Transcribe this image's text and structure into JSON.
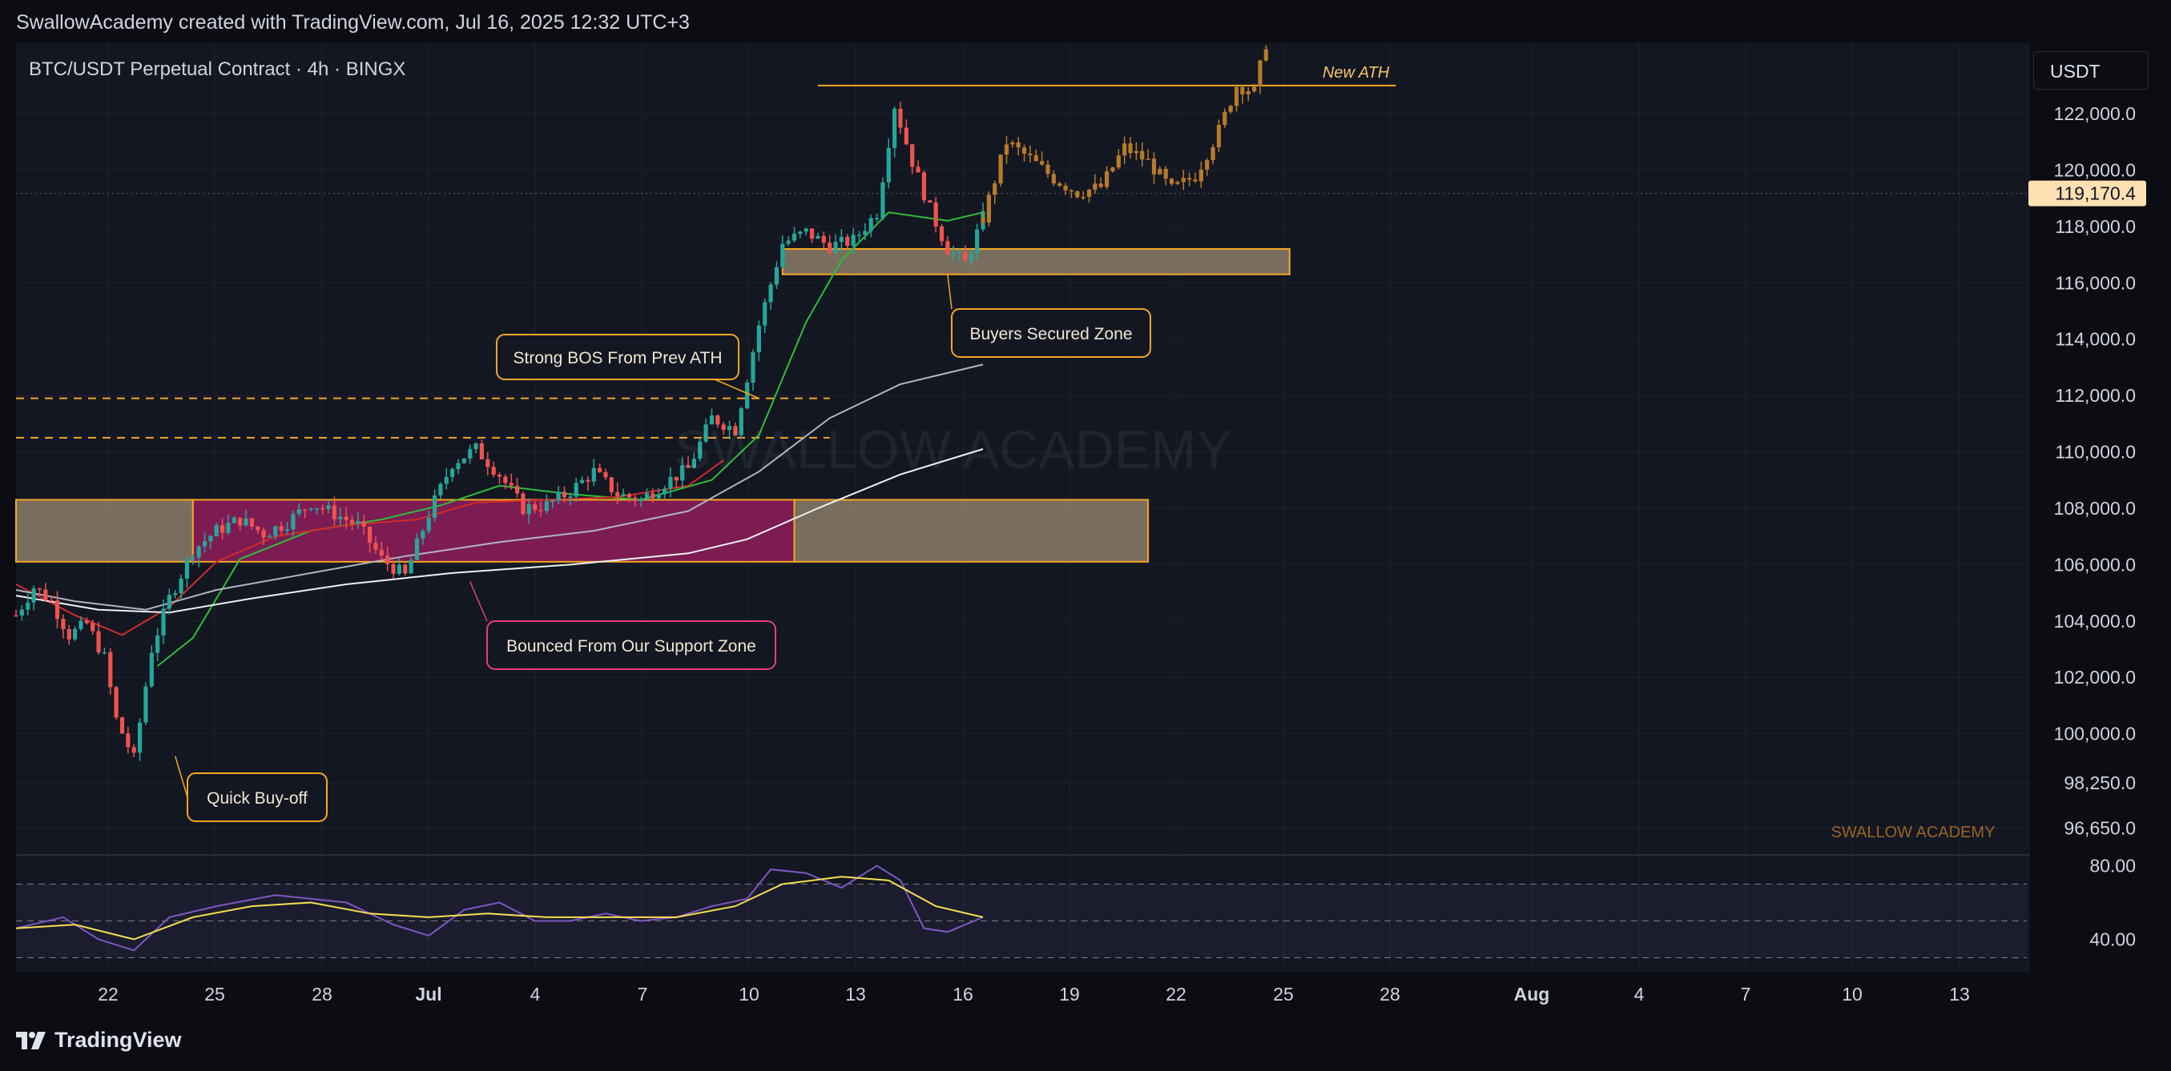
{
  "header": {
    "attribution": "SwallowAcademy created with TradingView.com, Jul 16, 2025 12:32 UTC+3"
  },
  "footer": {
    "brand": "TradingView",
    "logo_icon": "tradingview-logo-icon"
  },
  "currency_button": "USDT",
  "colors": {
    "background": "#131722",
    "up": "#26a69a",
    "down": "#ef5350",
    "projection": "#b87a2a",
    "orange": "#f5a623",
    "support_zone": "#8f1d5c",
    "rsi": "#7e57c2"
  },
  "chart_data": {
    "type": "candlestick",
    "title": "BTC/USDT Perpetual Contract · 4h · BINGX",
    "watermark": "SWALLOW ACADEMY",
    "watermark_corner": "SWALLOW ACADEMY",
    "ylim": [
      95700,
      124500
    ],
    "y_ticks": [
      "122,000.0",
      "120,000.0",
      "118,000.0",
      "116,000.0",
      "114,000.0",
      "112,000.0",
      "110,000.0",
      "108,000.0",
      "106,000.0",
      "104,000.0",
      "102,000.0",
      "100,000.0",
      "98,250.0",
      "96,650.0"
    ],
    "last_price_label": "119,170.4",
    "last_price": 119170.4,
    "x_ticks": [
      "22",
      "25",
      "28",
      "Jul",
      "4",
      "7",
      "10",
      "13",
      "16",
      "19",
      "22",
      "25",
      "28",
      "Aug",
      "4",
      "7",
      "10",
      "13"
    ],
    "price_path": [
      {
        "x": 0,
        "y": 104200
      },
      {
        "x": 3,
        "y": 105200
      },
      {
        "x": 6,
        "y": 104700
      },
      {
        "x": 9,
        "y": 103500
      },
      {
        "x": 12,
        "y": 103900
      },
      {
        "x": 15,
        "y": 102700
      },
      {
        "x": 17,
        "y": 100500
      },
      {
        "x": 20,
        "y": 99100
      },
      {
        "x": 23,
        "y": 103000
      },
      {
        "x": 26,
        "y": 104800
      },
      {
        "x": 30,
        "y": 106500
      },
      {
        "x": 34,
        "y": 107200
      },
      {
        "x": 38,
        "y": 107600
      },
      {
        "x": 42,
        "y": 107100
      },
      {
        "x": 46,
        "y": 107500
      },
      {
        "x": 50,
        "y": 108200
      },
      {
        "x": 54,
        "y": 107800
      },
      {
        "x": 58,
        "y": 107400
      },
      {
        "x": 62,
        "y": 106200
      },
      {
        "x": 66,
        "y": 105600
      },
      {
        "x": 70,
        "y": 107800
      },
      {
        "x": 74,
        "y": 109600
      },
      {
        "x": 78,
        "y": 110100
      },
      {
        "x": 82,
        "y": 109200
      },
      {
        "x": 86,
        "y": 108000
      },
      {
        "x": 90,
        "y": 108100
      },
      {
        "x": 94,
        "y": 108600
      },
      {
        "x": 98,
        "y": 109300
      },
      {
        "x": 102,
        "y": 108500
      },
      {
        "x": 106,
        "y": 108300
      },
      {
        "x": 110,
        "y": 108900
      },
      {
        "x": 114,
        "y": 109400
      },
      {
        "x": 118,
        "y": 111200
      },
      {
        "x": 122,
        "y": 110800
      },
      {
        "x": 126,
        "y": 114500
      },
      {
        "x": 130,
        "y": 117400
      },
      {
        "x": 134,
        "y": 117800
      },
      {
        "x": 138,
        "y": 117300
      },
      {
        "x": 142,
        "y": 117500
      },
      {
        "x": 146,
        "y": 118500
      },
      {
        "x": 149,
        "y": 122300
      },
      {
        "x": 152,
        "y": 120300
      },
      {
        "x": 155,
        "y": 118600
      },
      {
        "x": 158,
        "y": 117200
      },
      {
        "x": 161,
        "y": 116700
      },
      {
        "x": 164,
        "y": 118300
      }
    ],
    "projection_path": [
      {
        "x": 164,
        "y": 118300
      },
      {
        "x": 168,
        "y": 121000
      },
      {
        "x": 172,
        "y": 120400
      },
      {
        "x": 176,
        "y": 119700
      },
      {
        "x": 180,
        "y": 119200
      },
      {
        "x": 184,
        "y": 119400
      },
      {
        "x": 188,
        "y": 120800
      },
      {
        "x": 192,
        "y": 120300
      },
      {
        "x": 196,
        "y": 119300
      },
      {
        "x": 200,
        "y": 119800
      },
      {
        "x": 204,
        "y": 121400
      },
      {
        "x": 207,
        "y": 123000
      },
      {
        "x": 210,
        "y": 122800
      },
      {
        "x": 212,
        "y": 124500
      }
    ],
    "series": [
      {
        "name": "green EMA",
        "color": "#2dbd3a",
        "points": [
          [
            24,
            102400
          ],
          [
            30,
            103400
          ],
          [
            38,
            106200
          ],
          [
            50,
            107200
          ],
          [
            62,
            107600
          ],
          [
            72,
            108100
          ],
          [
            82,
            108800
          ],
          [
            94,
            108500
          ],
          [
            106,
            108300
          ],
          [
            118,
            109000
          ],
          [
            126,
            110600
          ],
          [
            134,
            114600
          ],
          [
            140,
            116800
          ],
          [
            148,
            118500
          ],
          [
            158,
            118200
          ],
          [
            164,
            118500
          ]
        ]
      },
      {
        "name": "red EMA",
        "color": "#d22b2b",
        "points": [
          [
            0,
            105300
          ],
          [
            10,
            104200
          ],
          [
            18,
            103500
          ],
          [
            26,
            104500
          ],
          [
            34,
            106100
          ],
          [
            44,
            107000
          ],
          [
            56,
            107400
          ],
          [
            68,
            107600
          ],
          [
            78,
            108200
          ],
          [
            90,
            108300
          ],
          [
            102,
            108400
          ],
          [
            114,
            108800
          ],
          [
            120,
            109700
          ]
        ]
      },
      {
        "name": "grey SMA",
        "color": "#b2b5be",
        "points": [
          [
            0,
            105100
          ],
          [
            10,
            104700
          ],
          [
            22,
            104400
          ],
          [
            34,
            105100
          ],
          [
            50,
            105700
          ],
          [
            66,
            106300
          ],
          [
            82,
            106800
          ],
          [
            98,
            107200
          ],
          [
            114,
            107900
          ],
          [
            126,
            109300
          ],
          [
            138,
            111200
          ],
          [
            150,
            112400
          ],
          [
            164,
            113100
          ]
        ]
      },
      {
        "name": "white SMA",
        "color": "#f0f0f0",
        "points": [
          [
            0,
            104900
          ],
          [
            14,
            104400
          ],
          [
            26,
            104300
          ],
          [
            40,
            104800
          ],
          [
            56,
            105300
          ],
          [
            74,
            105700
          ],
          [
            94,
            106000
          ],
          [
            114,
            106400
          ],
          [
            124,
            106900
          ],
          [
            136,
            108000
          ],
          [
            150,
            109200
          ],
          [
            164,
            110100
          ]
        ]
      }
    ],
    "levels": [
      {
        "name": "new_ath_line",
        "y": 123000,
        "x0": 136,
        "x1": 234,
        "style": "solid",
        "label": "New ATH"
      },
      {
        "name": "prev_ath_high",
        "y": 111900,
        "x0": 0,
        "x1": 138,
        "style": "dashed"
      },
      {
        "name": "prev_ath_low",
        "y": 110500,
        "x0": 0,
        "x1": 138,
        "style": "dashed"
      }
    ],
    "zones": [
      {
        "name": "support_zone_left",
        "x0": 0,
        "x1": 30,
        "y0": 106100,
        "y1": 108300,
        "style": "tan"
      },
      {
        "name": "support_zone_magenta",
        "x0": 30,
        "x1": 132,
        "y0": 106100,
        "y1": 108300,
        "style": "magenta"
      },
      {
        "name": "support_zone_right",
        "x0": 132,
        "x1": 192,
        "y0": 106100,
        "y1": 108300,
        "style": "tan"
      },
      {
        "name": "buyers_zone",
        "x0": 130,
        "x1": 216,
        "y0": 116300,
        "y1": 117200,
        "style": "tan"
      }
    ],
    "annotations": [
      {
        "name": "strong-bos",
        "text": "Strong BOS From Prev ATH",
        "target": {
          "x": 126,
          "y": 111900
        }
      },
      {
        "name": "buyers-zone",
        "text": "Buyers Secured Zone",
        "target": {
          "x": 158,
          "y": 116300
        }
      },
      {
        "name": "bounced",
        "text": "Bounced From Our Support Zone",
        "target": {
          "x": 77,
          "y": 105400
        }
      },
      {
        "name": "quick-buyoff",
        "text": "Quick Buy-off",
        "target": {
          "x": 27,
          "y": 99200
        }
      }
    ],
    "rsi": {
      "y_ticks": [
        "80.00",
        "40.00"
      ],
      "ylim": [
        25,
        85
      ],
      "upper_band": 70,
      "lower_band": 30,
      "rsi_points": [
        [
          0,
          46
        ],
        [
          8,
          52
        ],
        [
          14,
          40
        ],
        [
          20,
          34
        ],
        [
          26,
          52
        ],
        [
          34,
          58
        ],
        [
          44,
          64
        ],
        [
          56,
          60
        ],
        [
          64,
          48
        ],
        [
          70,
          42
        ],
        [
          76,
          56
        ],
        [
          82,
          60
        ],
        [
          88,
          50
        ],
        [
          94,
          50
        ],
        [
          100,
          54
        ],
        [
          106,
          50
        ],
        [
          112,
          52
        ],
        [
          118,
          58
        ],
        [
          124,
          62
        ],
        [
          128,
          78
        ],
        [
          134,
          76
        ],
        [
          140,
          68
        ],
        [
          146,
          80
        ],
        [
          150,
          72
        ],
        [
          154,
          46
        ],
        [
          158,
          44
        ],
        [
          164,
          52
        ]
      ],
      "ma_points": [
        [
          0,
          46
        ],
        [
          10,
          48
        ],
        [
          20,
          40
        ],
        [
          30,
          52
        ],
        [
          40,
          58
        ],
        [
          50,
          60
        ],
        [
          60,
          54
        ],
        [
          70,
          52
        ],
        [
          80,
          54
        ],
        [
          90,
          52
        ],
        [
          100,
          52
        ],
        [
          112,
          52
        ],
        [
          122,
          58
        ],
        [
          130,
          70
        ],
        [
          140,
          74
        ],
        [
          148,
          72
        ],
        [
          156,
          58
        ],
        [
          164,
          52
        ]
      ]
    }
  }
}
